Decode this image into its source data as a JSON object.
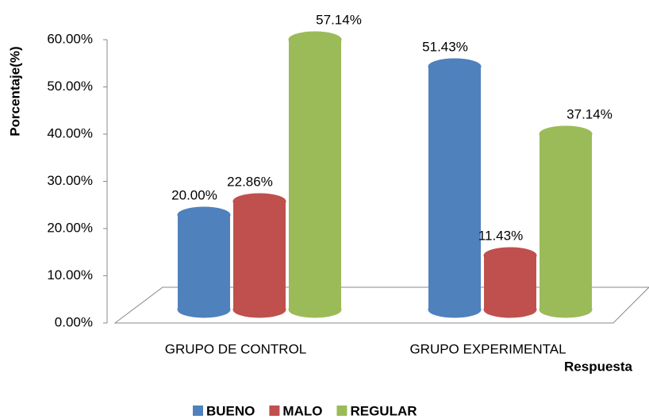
{
  "chart_data": {
    "type": "bar3d",
    "y_axis_label": "Porcentaje(%)",
    "x_axis_label": "Respuesta",
    "categories": [
      "GRUPO DE CONTROL",
      "GRUPO EXPERIMENTAL"
    ],
    "series": [
      {
        "name": "BUENO",
        "color": "#4f81bd",
        "values": [
          20.0,
          51.43
        ],
        "value_labels": [
          "20.00%",
          "51.43%"
        ]
      },
      {
        "name": "MALO",
        "color": "#c0504d",
        "values": [
          22.86,
          11.43
        ],
        "value_labels": [
          "22.86%",
          "11.43%"
        ]
      },
      {
        "name": "REGULAR",
        "color": "#9bbb59",
        "values": [
          57.14,
          37.14
        ],
        "value_labels": [
          "57.14%",
          "37.14%"
        ]
      }
    ],
    "ylim": [
      0,
      60
    ],
    "yticks": [
      {
        "value": 0,
        "label": "0.00%"
      },
      {
        "value": 10,
        "label": "10.00%"
      },
      {
        "value": 20,
        "label": "20.00%"
      },
      {
        "value": 30,
        "label": "30.00%"
      },
      {
        "value": 40,
        "label": "40.00%"
      },
      {
        "value": 50,
        "label": "50.00%"
      },
      {
        "value": 60,
        "label": "60.00%"
      }
    ],
    "legend": "bottom"
  }
}
